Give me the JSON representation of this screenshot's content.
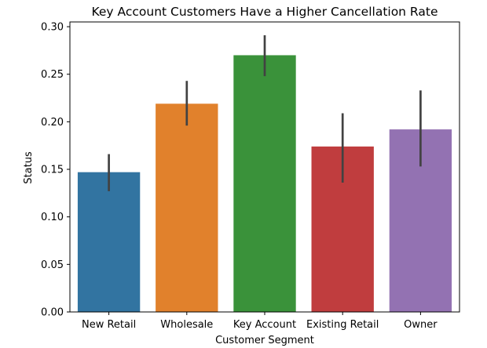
{
  "chart_data": {
    "type": "bar",
    "title": "Key Account Customers Have a Higher Cancellation Rate",
    "xlabel": "Customer Segment",
    "ylabel": "Status",
    "categories": [
      "New Retail",
      "Wholesale",
      "Key Account",
      "Existing Retail",
      "Owner"
    ],
    "values": [
      0.147,
      0.219,
      0.27,
      0.174,
      0.192
    ],
    "error_low": [
      0.127,
      0.196,
      0.248,
      0.136,
      0.153
    ],
    "error_high": [
      0.166,
      0.243,
      0.291,
      0.209,
      0.233
    ],
    "colors": [
      "#3274a1",
      "#e1812c",
      "#3a923a",
      "#c03d3e",
      "#9372b2"
    ],
    "error_color": "#424242",
    "ylim": [
      0,
      0.305
    ],
    "yticks": [
      0.0,
      0.05,
      0.1,
      0.15,
      0.2,
      0.25,
      0.3
    ],
    "ytick_labels": [
      "0.00",
      "0.05",
      "0.10",
      "0.15",
      "0.20",
      "0.25",
      "0.30"
    ],
    "grid": false,
    "legend": "none"
  }
}
